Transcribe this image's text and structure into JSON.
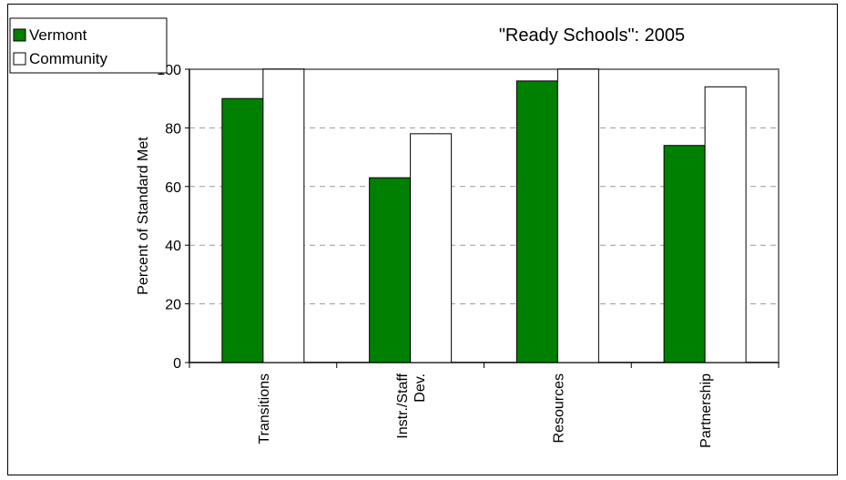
{
  "chart_data": {
    "type": "bar",
    "title": "\"Ready Schools\": 2005",
    "xlabel": "",
    "ylabel": "Percent of Standard Met",
    "ylim": [
      0,
      100
    ],
    "yticks": [
      0,
      20,
      40,
      60,
      80,
      100
    ],
    "grid": "horizontal dashed",
    "legend_position": "top-left",
    "categories": [
      "Transitions",
      "Instr./Staff Dev.",
      "Resources",
      "Partnership"
    ],
    "category_lines": [
      [
        "Transitions"
      ],
      [
        "Instr./Staff",
        "Dev."
      ],
      [
        "Resources"
      ],
      [
        "Partnership"
      ]
    ],
    "series": [
      {
        "name": "Vermont",
        "values": [
          90,
          63,
          96,
          74
        ],
        "color": "#008000"
      },
      {
        "name": "Community",
        "values": [
          100,
          78,
          100,
          94
        ],
        "color": "#ffffff"
      }
    ]
  }
}
